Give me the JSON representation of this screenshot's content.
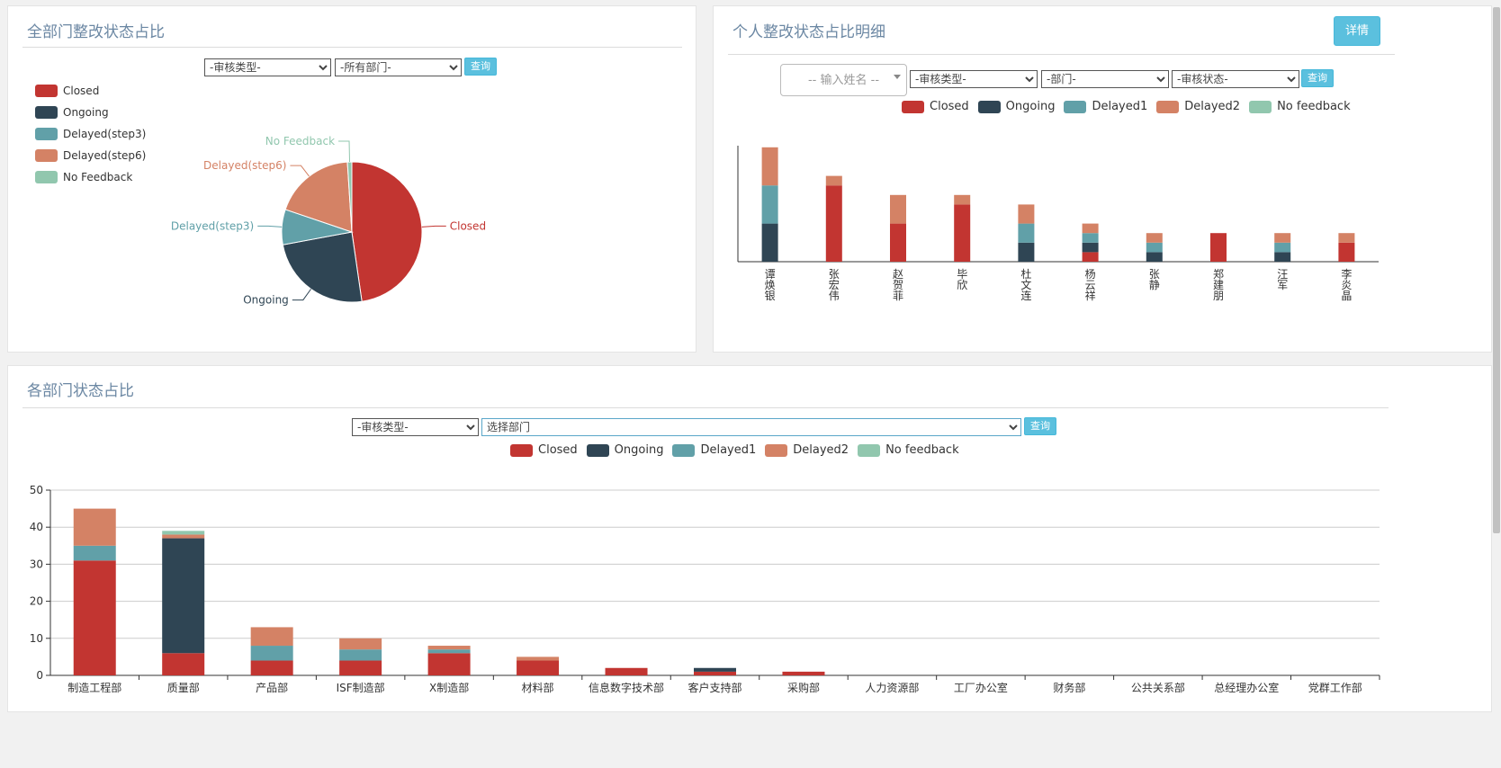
{
  "colors": {
    "closed": "#c23531",
    "ongoing": "#2f4554",
    "delayed1": "#61a0a8",
    "delayed2": "#d48265",
    "nofeedback": "#91c7ae",
    "button": "#5bc0de"
  },
  "panel1": {
    "title": "全部门整改状态占比",
    "filter_type": "-审核类型-",
    "filter_dept": "-所有部门-",
    "query": "查询",
    "legend": [
      "Closed",
      "Ongoing",
      "Delayed(step3)",
      "Delayed(step6)",
      "No Feedback"
    ],
    "pie_labels": {
      "closed": "Closed",
      "ongoing": "Ongoing",
      "delayed3": "Delayed(step3)",
      "delayed6": "Delayed(step6)",
      "nofeedback": "No Feedback"
    }
  },
  "panel2": {
    "title": "个人整改状态占比明细",
    "detail": "详情",
    "name_placeholder": "-- 输入姓名 --",
    "filter_type": "-审核类型-",
    "filter_dept": "-部门-",
    "filter_status": "-审核状态-",
    "query": "查询",
    "legend": [
      "Closed",
      "Ongoing",
      "Delayed1",
      "Delayed2",
      "No feedback"
    ]
  },
  "panel3": {
    "title": "各部门状态占比",
    "filter_type": "-审核类型-",
    "filter_dept": "选择部门",
    "query": "查询",
    "legend": [
      "Closed",
      "Ongoing",
      "Delayed1",
      "Delayed2",
      "No feedback"
    ]
  },
  "chart_data": [
    {
      "type": "pie",
      "title": "",
      "slices": [
        {
          "name": "Closed",
          "value": 94
        },
        {
          "name": "Ongoing",
          "value": 48
        },
        {
          "name": "Delayed(step3)",
          "value": 16
        },
        {
          "name": "Delayed(step6)",
          "value": 37
        },
        {
          "name": "No Feedback",
          "value": 2
        }
      ]
    },
    {
      "type": "bar",
      "stacked": true,
      "categories": [
        "谭焕银",
        "张宏伟",
        "赵贺菲",
        "毕欣",
        "杜文连",
        "杨云祥",
        "张静",
        "郑建朋",
        "汪军",
        "李炎晶"
      ],
      "series": [
        {
          "name": "Closed",
          "values": [
            0,
            8,
            4,
            6,
            0,
            1,
            0,
            3,
            0,
            2
          ]
        },
        {
          "name": "Ongoing",
          "values": [
            4,
            0,
            0,
            0,
            2,
            1,
            1,
            0,
            1,
            0
          ]
        },
        {
          "name": "Delayed1",
          "values": [
            4,
            0,
            0,
            0,
            2,
            1,
            1,
            0,
            1,
            0
          ]
        },
        {
          "name": "Delayed2",
          "values": [
            4,
            1,
            3,
            1,
            2,
            1,
            1,
            0,
            1,
            1
          ]
        },
        {
          "name": "No feedback",
          "values": [
            0,
            0,
            0,
            0,
            0,
            0,
            0,
            0,
            0,
            0
          ]
        }
      ]
    },
    {
      "type": "bar",
      "stacked": true,
      "categories": [
        "制造工程部",
        "质量部",
        "产品部",
        "ISF制造部",
        "X制造部",
        "材料部",
        "信息数字技术部",
        "客户支持部",
        "采购部",
        "人力资源部",
        "工厂办公室",
        "财务部",
        "公共关系部",
        "总经理办公室",
        "党群工作部"
      ],
      "ylim": [
        0,
        50
      ],
      "yticks": [
        0,
        10,
        20,
        30,
        40,
        50
      ],
      "grid": true,
      "series": [
        {
          "name": "Closed",
          "values": [
            31,
            6,
            4,
            4,
            6,
            4,
            2,
            1,
            1,
            0,
            0,
            0,
            0,
            0,
            0
          ]
        },
        {
          "name": "Ongoing",
          "values": [
            0,
            31,
            0,
            0,
            0,
            0,
            0,
            1,
            0,
            0,
            0,
            0,
            0,
            0,
            0
          ]
        },
        {
          "name": "Delayed1",
          "values": [
            4,
            0,
            4,
            3,
            1,
            0,
            0,
            0,
            0,
            0,
            0,
            0,
            0,
            0,
            0
          ]
        },
        {
          "name": "Delayed2",
          "values": [
            10,
            1,
            5,
            3,
            1,
            1,
            0,
            0,
            0,
            0,
            0,
            0,
            0,
            0,
            0
          ]
        },
        {
          "name": "No feedback",
          "values": [
            0,
            1,
            0,
            0,
            0,
            0,
            0,
            0,
            0,
            0,
            0,
            0,
            0,
            0,
            0
          ]
        }
      ]
    }
  ]
}
